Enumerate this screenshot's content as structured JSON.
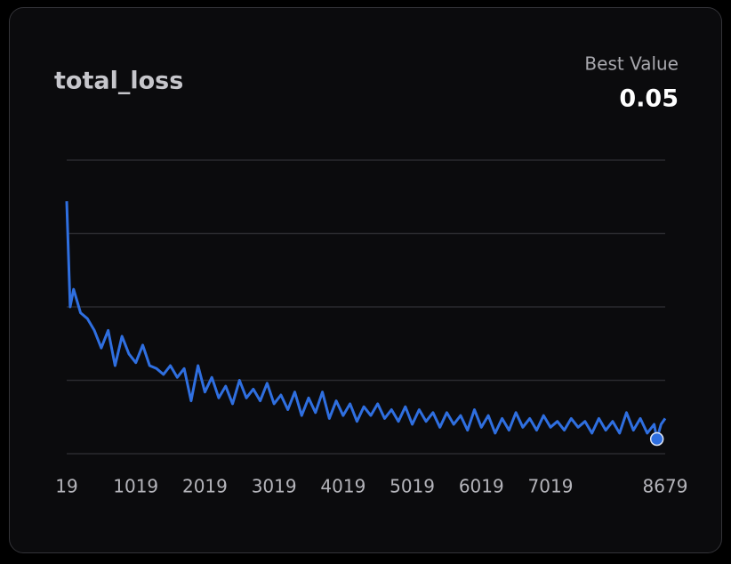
{
  "chart_data": {
    "type": "line",
    "title": "total_loss",
    "best_label": "Best Value",
    "best_value": 0.05,
    "x": [
      19,
      69,
      119,
      219,
      319,
      419,
      519,
      619,
      719,
      819,
      919,
      1019,
      1119,
      1219,
      1319,
      1419,
      1519,
      1619,
      1719,
      1819,
      1919,
      2019,
      2119,
      2219,
      2319,
      2419,
      2519,
      2619,
      2719,
      2819,
      2919,
      3019,
      3119,
      3219,
      3319,
      3419,
      3519,
      3619,
      3719,
      3819,
      3919,
      4019,
      4119,
      4219,
      4319,
      4419,
      4519,
      4619,
      4719,
      4819,
      4919,
      5019,
      5119,
      5219,
      5319,
      5419,
      5519,
      5619,
      5719,
      5819,
      5919,
      6019,
      6119,
      6219,
      6319,
      6419,
      6519,
      6619,
      6719,
      6819,
      6919,
      7019,
      7119,
      7219,
      7319,
      7419,
      7519,
      7619,
      7719,
      7819,
      7919,
      8019,
      8119,
      8219,
      8319,
      8419,
      8519,
      8559,
      8619,
      8679
    ],
    "series": [
      {
        "name": "total_loss",
        "color": "#2f6fe0",
        "values": [
          0.86,
          0.5,
          0.56,
          0.48,
          0.46,
          0.42,
          0.36,
          0.42,
          0.3,
          0.4,
          0.34,
          0.31,
          0.37,
          0.3,
          0.29,
          0.27,
          0.3,
          0.26,
          0.29,
          0.18,
          0.3,
          0.21,
          0.26,
          0.19,
          0.23,
          0.17,
          0.25,
          0.19,
          0.22,
          0.18,
          0.24,
          0.17,
          0.2,
          0.15,
          0.21,
          0.13,
          0.19,
          0.14,
          0.21,
          0.12,
          0.18,
          0.13,
          0.17,
          0.11,
          0.16,
          0.13,
          0.17,
          0.12,
          0.15,
          0.11,
          0.16,
          0.1,
          0.15,
          0.11,
          0.14,
          0.09,
          0.14,
          0.1,
          0.13,
          0.08,
          0.15,
          0.09,
          0.13,
          0.07,
          0.12,
          0.08,
          0.14,
          0.09,
          0.12,
          0.08,
          0.13,
          0.09,
          0.11,
          0.08,
          0.12,
          0.09,
          0.11,
          0.07,
          0.12,
          0.08,
          0.11,
          0.07,
          0.14,
          0.08,
          0.12,
          0.07,
          0.1,
          0.05,
          0.1,
          0.12
        ]
      }
    ],
    "xlim": [
      19,
      8679
    ],
    "xticks": [
      19,
      1019,
      2019,
      3019,
      4019,
      5019,
      6019,
      7019,
      8679
    ],
    "ylim": [
      0,
      1
    ],
    "yticks": [
      0,
      0.25,
      0.5,
      0.75,
      1
    ],
    "grid": true
  }
}
